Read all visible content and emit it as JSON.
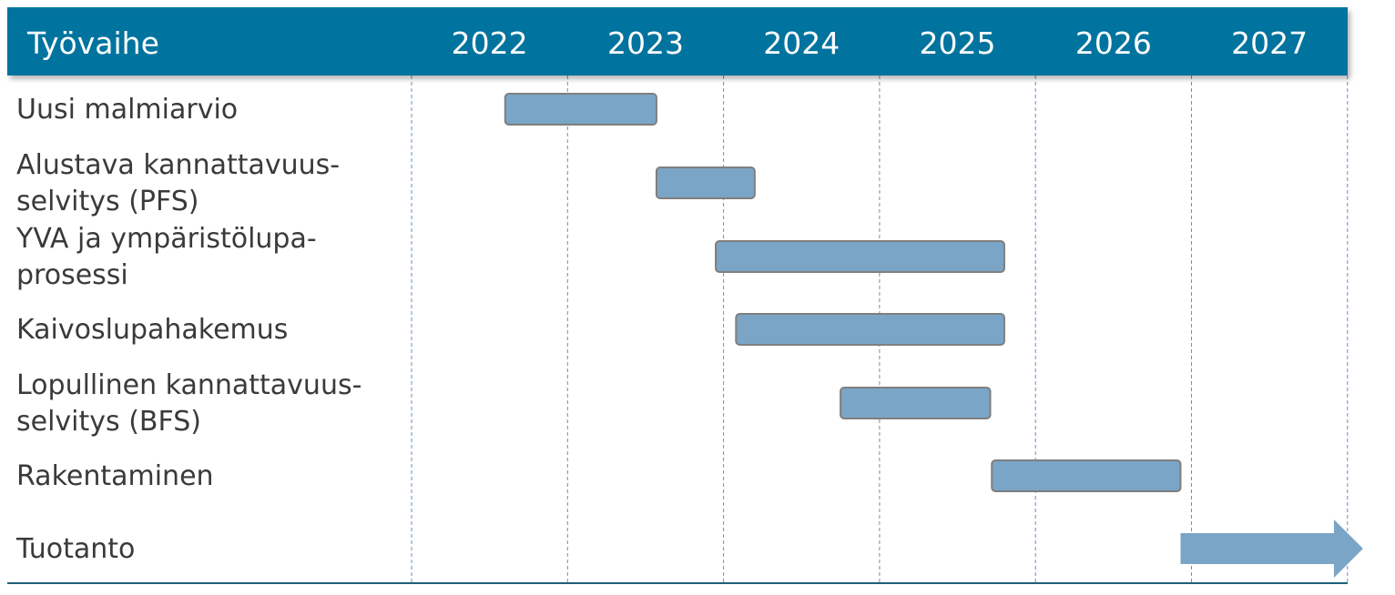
{
  "chart_data": {
    "type": "gantt",
    "title": "",
    "header_label": "Työvaihe",
    "years": [
      "2022",
      "2023",
      "2024",
      "2025",
      "2026",
      "2027"
    ],
    "timeline": {
      "start": 2022.0,
      "end": 2028.0
    },
    "tasks": [
      {
        "label_lines": [
          "Uusi malmiarvio"
        ],
        "start": 2022.6,
        "end": 2023.57,
        "arrow": false
      },
      {
        "label_lines": [
          "Alustava kannattavuus-",
          "selvitys (PFS)"
        ],
        "start": 2023.57,
        "end": 2024.2,
        "arrow": false
      },
      {
        "label_lines": [
          "YVA ja ympäristölupa-",
          "prosessi"
        ],
        "start": 2023.95,
        "end": 2025.8,
        "arrow": false
      },
      {
        "label_lines": [
          "Kaivoslupahakemus"
        ],
        "start": 2024.08,
        "end": 2025.8,
        "arrow": false
      },
      {
        "label_lines": [
          "Lopullinen kannattavuus-",
          "selvitys (BFS)"
        ],
        "start": 2024.75,
        "end": 2025.71,
        "arrow": false
      },
      {
        "label_lines": [
          "Rakentaminen"
        ],
        "start": 2025.72,
        "end": 2026.93,
        "arrow": false
      },
      {
        "label_lines": [
          "Tuotanto"
        ],
        "start": 2026.93,
        "end": 2028.1,
        "arrow": true
      }
    ],
    "colors": {
      "header": "#00739e",
      "bar": "#7aa5c6",
      "bar_stroke": "#7f7f7f",
      "gridline": "#6a8fc0",
      "baseline": "#1f5f78"
    }
  }
}
